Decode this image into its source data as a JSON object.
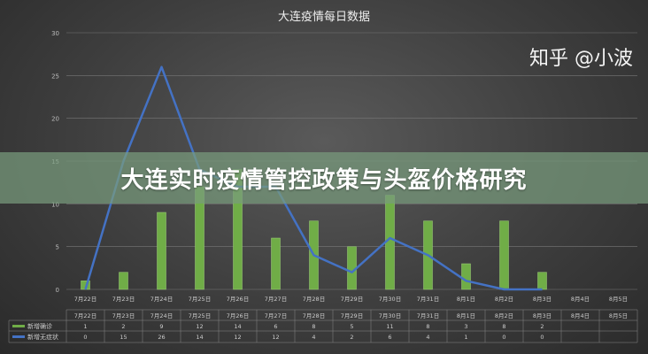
{
  "chart_data": {
    "type": "bar+line",
    "title": "大连疫情每日数据",
    "categories": [
      "7月22日",
      "7月23日",
      "7月24日",
      "7月25日",
      "7月26日",
      "7月27日",
      "7月28日",
      "7月29日",
      "7月30日",
      "7月31日",
      "8月1日",
      "8月2日",
      "8月3日",
      "8月4日",
      "8月5日"
    ],
    "ylim": [
      0,
      30
    ],
    "yticks": [
      0,
      5,
      10,
      15,
      20,
      25,
      30
    ],
    "grid": true,
    "series": [
      {
        "name": "新增确诊",
        "type": "bar",
        "color": "#70ad47",
        "values": [
          1,
          2,
          9,
          12,
          14,
          6,
          8,
          5,
          11,
          8,
          3,
          8,
          2,
          null,
          null
        ]
      },
      {
        "name": "新增无症状",
        "type": "line",
        "color": "#4472c4",
        "values": [
          0,
          15,
          26,
          14,
          12,
          12,
          4,
          2,
          6,
          4,
          1,
          0,
          0,
          null,
          null
        ]
      }
    ],
    "legend": "data-table-bottom"
  },
  "banner": "大连实时疫情管控政策与头盔价格研究",
  "watermark": "知乎 @小波"
}
